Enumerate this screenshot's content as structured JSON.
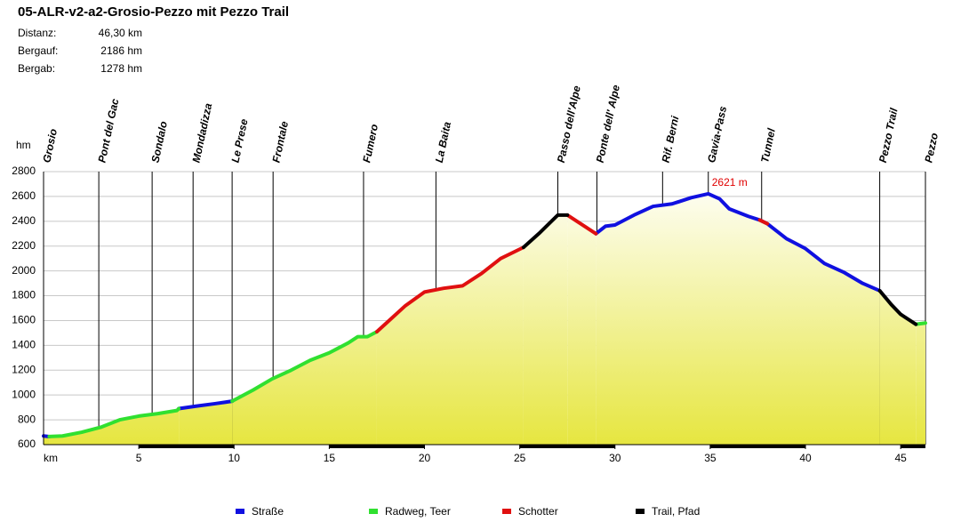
{
  "chart_data": {
    "type": "line",
    "title": "05-ALR-v2-a2-Grosio-Pezzo mit Pezzo Trail",
    "stats": [
      {
        "label": "Distanz:",
        "value": "46,30 km"
      },
      {
        "label": "Bergauf:",
        "value": "2186 hm"
      },
      {
        "label": "Bergab:",
        "value": "1278 hm"
      }
    ],
    "x_label": "km",
    "y_label": "hm",
    "xlim": [
      0,
      46.3
    ],
    "ylim": [
      600,
      2800
    ],
    "xticks": [
      5,
      10,
      15,
      20,
      25,
      30,
      35,
      40,
      45
    ],
    "yticks": [
      600,
      800,
      1000,
      1200,
      1400,
      1600,
      1800,
      2000,
      2200,
      2400,
      2600,
      2800
    ],
    "grid": true,
    "legend": "bottom",
    "waypoints": [
      {
        "name": "Grosio",
        "km": 0
      },
      {
        "name": "Pont del Gac",
        "km": 2.9
      },
      {
        "name": "Sondalo",
        "km": 5.7
      },
      {
        "name": "Mondadizza",
        "km": 7.85
      },
      {
        "name": "Le Prese",
        "km": 9.9
      },
      {
        "name": "Frontale",
        "km": 12.05
      },
      {
        "name": "Fumero",
        "km": 16.8
      },
      {
        "name": "La Baita",
        "km": 20.6
      },
      {
        "name": "Passo dell'Alpe",
        "km": 27.0
      },
      {
        "name": "Ponte dell' Alpe",
        "km": 29.05
      },
      {
        "name": "Rif. Berni",
        "km": 32.5
      },
      {
        "name": "Gavia-Pass",
        "km": 34.9
      },
      {
        "name": "Tunnel",
        "km": 37.7
      },
      {
        "name": "Pezzo Trail",
        "km": 43.9
      },
      {
        "name": "Pezzo",
        "km": 46.3
      }
    ],
    "annotation": {
      "text": "2621 m",
      "x": 34.9,
      "y": 2621,
      "color": "#e00000"
    },
    "x": [
      0,
      0.3,
      1,
      2,
      3,
      4,
      5,
      6,
      7,
      7.1,
      8,
      9,
      9.9,
      11,
      12,
      13,
      14,
      15,
      16,
      16.5,
      17,
      17.5,
      18,
      19,
      20,
      21,
      22,
      23,
      24,
      25.2,
      26,
      27,
      27.5,
      28,
      29,
      29.5,
      30,
      31,
      32,
      33,
      34,
      34.9,
      35.5,
      36,
      37,
      37.6,
      38,
      39,
      40,
      41,
      42,
      43,
      43.9,
      44.5,
      45,
      45.8,
      46.3
    ],
    "series": [
      {
        "name": "Straße",
        "color": "#1010e0",
        "values": [
          670,
          665,
          null,
          null,
          null,
          null,
          null,
          null,
          null,
          890,
          910,
          930,
          950,
          null,
          null,
          null,
          null,
          null,
          null,
          null,
          null,
          null,
          null,
          null,
          null,
          null,
          null,
          null,
          null,
          null,
          null,
          null,
          null,
          null,
          2300,
          2360,
          2370,
          2450,
          2520,
          2540,
          2590,
          2621,
          2580,
          2500,
          2440,
          2410,
          2380,
          2260,
          2180,
          2060,
          1990,
          1900,
          1840,
          null,
          null,
          null,
          null
        ]
      },
      {
        "name": "Radweg, Teer",
        "color": "#30e030",
        "values": [
          null,
          665,
          670,
          700,
          740,
          800,
          830,
          850,
          875,
          890,
          null,
          null,
          950,
          1040,
          1130,
          1200,
          1280,
          1340,
          1420,
          1470,
          1470,
          1510,
          null,
          null,
          null,
          null,
          null,
          null,
          null,
          null,
          null,
          null,
          null,
          null,
          null,
          null,
          null,
          null,
          null,
          null,
          null,
          null,
          null,
          null,
          null,
          null,
          null,
          null,
          null,
          null,
          null,
          null,
          null,
          null,
          null,
          1570,
          1580
        ]
      },
      {
        "name": "Schotter",
        "color": "#e01010",
        "values": [
          null,
          null,
          null,
          null,
          null,
          null,
          null,
          null,
          null,
          null,
          null,
          null,
          null,
          null,
          null,
          null,
          null,
          null,
          null,
          null,
          null,
          1510,
          1580,
          1720,
          1830,
          1860,
          1880,
          1980,
          2100,
          2190,
          null,
          null,
          2450,
          2400,
          2300,
          null,
          null,
          null,
          null,
          null,
          null,
          null,
          null,
          null,
          null,
          2410,
          2380,
          null,
          null,
          null,
          null,
          null,
          null,
          null,
          null,
          null,
          null
        ]
      },
      {
        "name": "Trail, Pfad",
        "color": "#000000",
        "values": [
          null,
          null,
          null,
          null,
          null,
          null,
          null,
          null,
          null,
          null,
          null,
          null,
          null,
          null,
          null,
          null,
          null,
          null,
          null,
          null,
          null,
          null,
          null,
          null,
          null,
          null,
          null,
          null,
          null,
          2190,
          2300,
          2450,
          2450,
          null,
          null,
          null,
          null,
          null,
          null,
          null,
          null,
          null,
          null,
          null,
          null,
          null,
          null,
          null,
          null,
          null,
          null,
          null,
          1840,
          1730,
          1650,
          1570,
          null
        ]
      }
    ]
  }
}
